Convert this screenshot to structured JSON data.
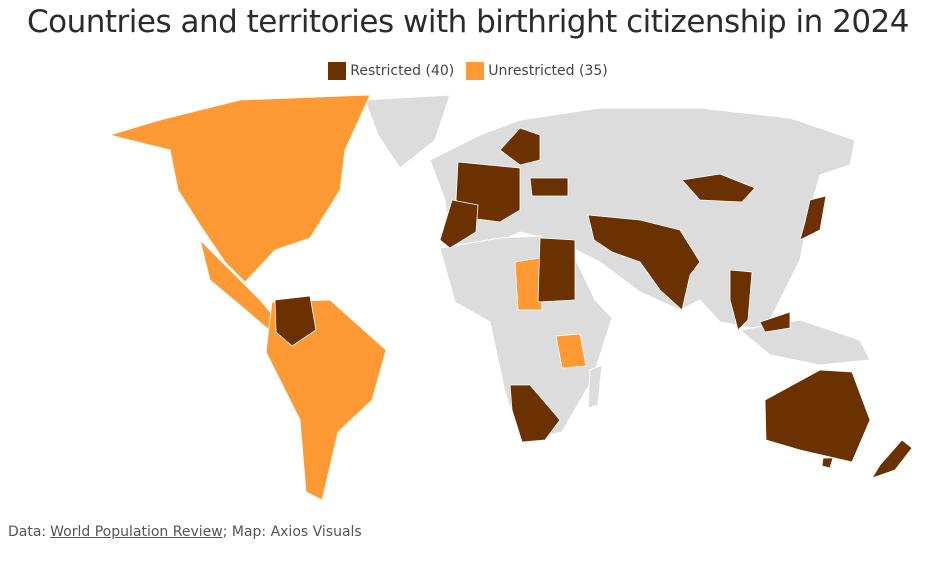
{
  "header": {
    "title": "Countries and territories with birthright citizenship in 2024"
  },
  "legend": [
    {
      "label": "Restricted (40)",
      "color": "#6b3100"
    },
    {
      "label": "Unrestricted (35)",
      "color": "#ff9933"
    }
  ],
  "source": {
    "prefix": "Data:",
    "link": "World Population Review",
    "suffix": "; Map: Axios Visuals"
  }
}
